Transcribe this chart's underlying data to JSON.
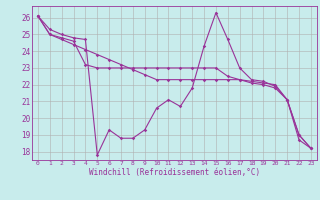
{
  "xlabel": "Windchill (Refroidissement éolien,°C)",
  "bg_color": "#c8ecec",
  "line_color": "#993399",
  "grid_color": "#b0b0b0",
  "xlim": [
    -0.5,
    23.5
  ],
  "ylim": [
    17.5,
    26.7
  ],
  "xticks": [
    0,
    1,
    2,
    3,
    4,
    5,
    6,
    7,
    8,
    9,
    10,
    11,
    12,
    13,
    14,
    15,
    16,
    17,
    18,
    19,
    20,
    21,
    22,
    23
  ],
  "yticks": [
    18,
    19,
    20,
    21,
    22,
    23,
    24,
    25,
    26
  ],
  "series": [
    [
      26.1,
      25.3,
      25.0,
      24.8,
      24.7,
      17.8,
      19.3,
      18.8,
      18.8,
      19.3,
      20.6,
      21.1,
      20.7,
      21.8,
      24.3,
      26.3,
      24.7,
      23.0,
      22.3,
      22.2,
      21.9,
      21.1,
      18.7,
      18.2
    ],
    [
      26.1,
      25.0,
      24.8,
      24.6,
      23.2,
      23.0,
      23.0,
      23.0,
      23.0,
      23.0,
      23.0,
      23.0,
      23.0,
      23.0,
      23.0,
      23.0,
      22.5,
      22.3,
      22.1,
      22.0,
      21.8,
      21.1,
      19.0,
      18.2
    ],
    [
      26.1,
      25.0,
      24.7,
      24.4,
      24.1,
      23.8,
      23.5,
      23.2,
      22.9,
      22.6,
      22.3,
      22.3,
      22.3,
      22.3,
      22.3,
      22.3,
      22.3,
      22.3,
      22.2,
      22.1,
      22.0,
      21.1,
      19.0,
      18.2
    ]
  ]
}
